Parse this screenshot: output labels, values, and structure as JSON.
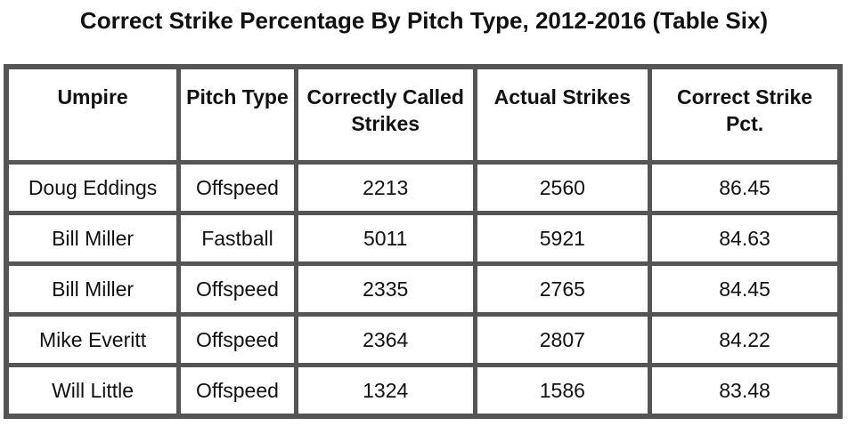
{
  "title": "Correct Strike Percentage By Pitch Type, 2012-2016 (Table Six)",
  "table": {
    "columns": [
      "Umpire",
      "Pitch Type",
      "Correctly Called Strikes",
      "Actual Strikes",
      "Correct Strike Pct."
    ],
    "rows": [
      [
        "Doug Eddings",
        "Offspeed",
        2213,
        2560,
        86.45
      ],
      [
        "Bill Miller",
        "Fastball",
        5011,
        5921,
        84.63
      ],
      [
        "Bill Miller",
        "Offspeed",
        2335,
        2765,
        84.45
      ],
      [
        "Mike Everitt",
        "Offspeed",
        2364,
        2807,
        84.22
      ],
      [
        "Will Little",
        "Offspeed",
        1324,
        1586,
        83.48
      ]
    ]
  }
}
